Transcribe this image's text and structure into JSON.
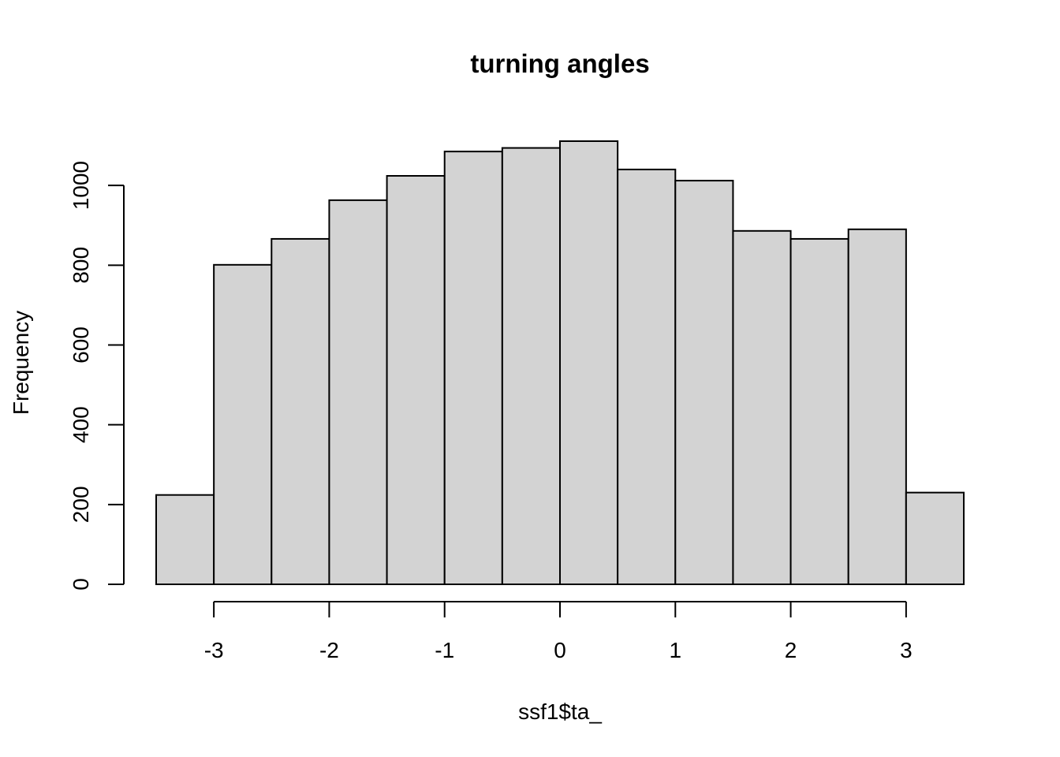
{
  "chart_data": {
    "type": "bar",
    "title": "turning angles",
    "xlabel": "ssf1$ta_",
    "ylabel": "Frequency",
    "bin_edges": [
      -3.5,
      -3.0,
      -2.5,
      -2.0,
      -1.5,
      -1.0,
      -0.5,
      0.0,
      0.5,
      1.0,
      1.5,
      2.0,
      2.5,
      3.0,
      3.5
    ],
    "values": [
      224,
      801,
      866,
      963,
      1024,
      1085,
      1094,
      1111,
      1040,
      1012,
      886,
      866,
      890,
      230
    ],
    "xlim": [
      -3.5,
      3.5
    ],
    "ylim": [
      0,
      1111
    ],
    "x_ticks": [
      -3,
      -2,
      -1,
      0,
      1,
      2,
      3
    ],
    "x_tick_labels": [
      "-3",
      "-2",
      "-1",
      "0",
      "1",
      "2",
      "3"
    ],
    "y_ticks": [
      0,
      200,
      400,
      600,
      800,
      1000
    ],
    "y_tick_labels": [
      "0",
      "200",
      "400",
      "600",
      "800",
      "1000"
    ],
    "colors": {
      "bar_fill": "#d3d3d3",
      "bar_stroke": "#000000"
    },
    "grid": false,
    "legend": "none"
  }
}
